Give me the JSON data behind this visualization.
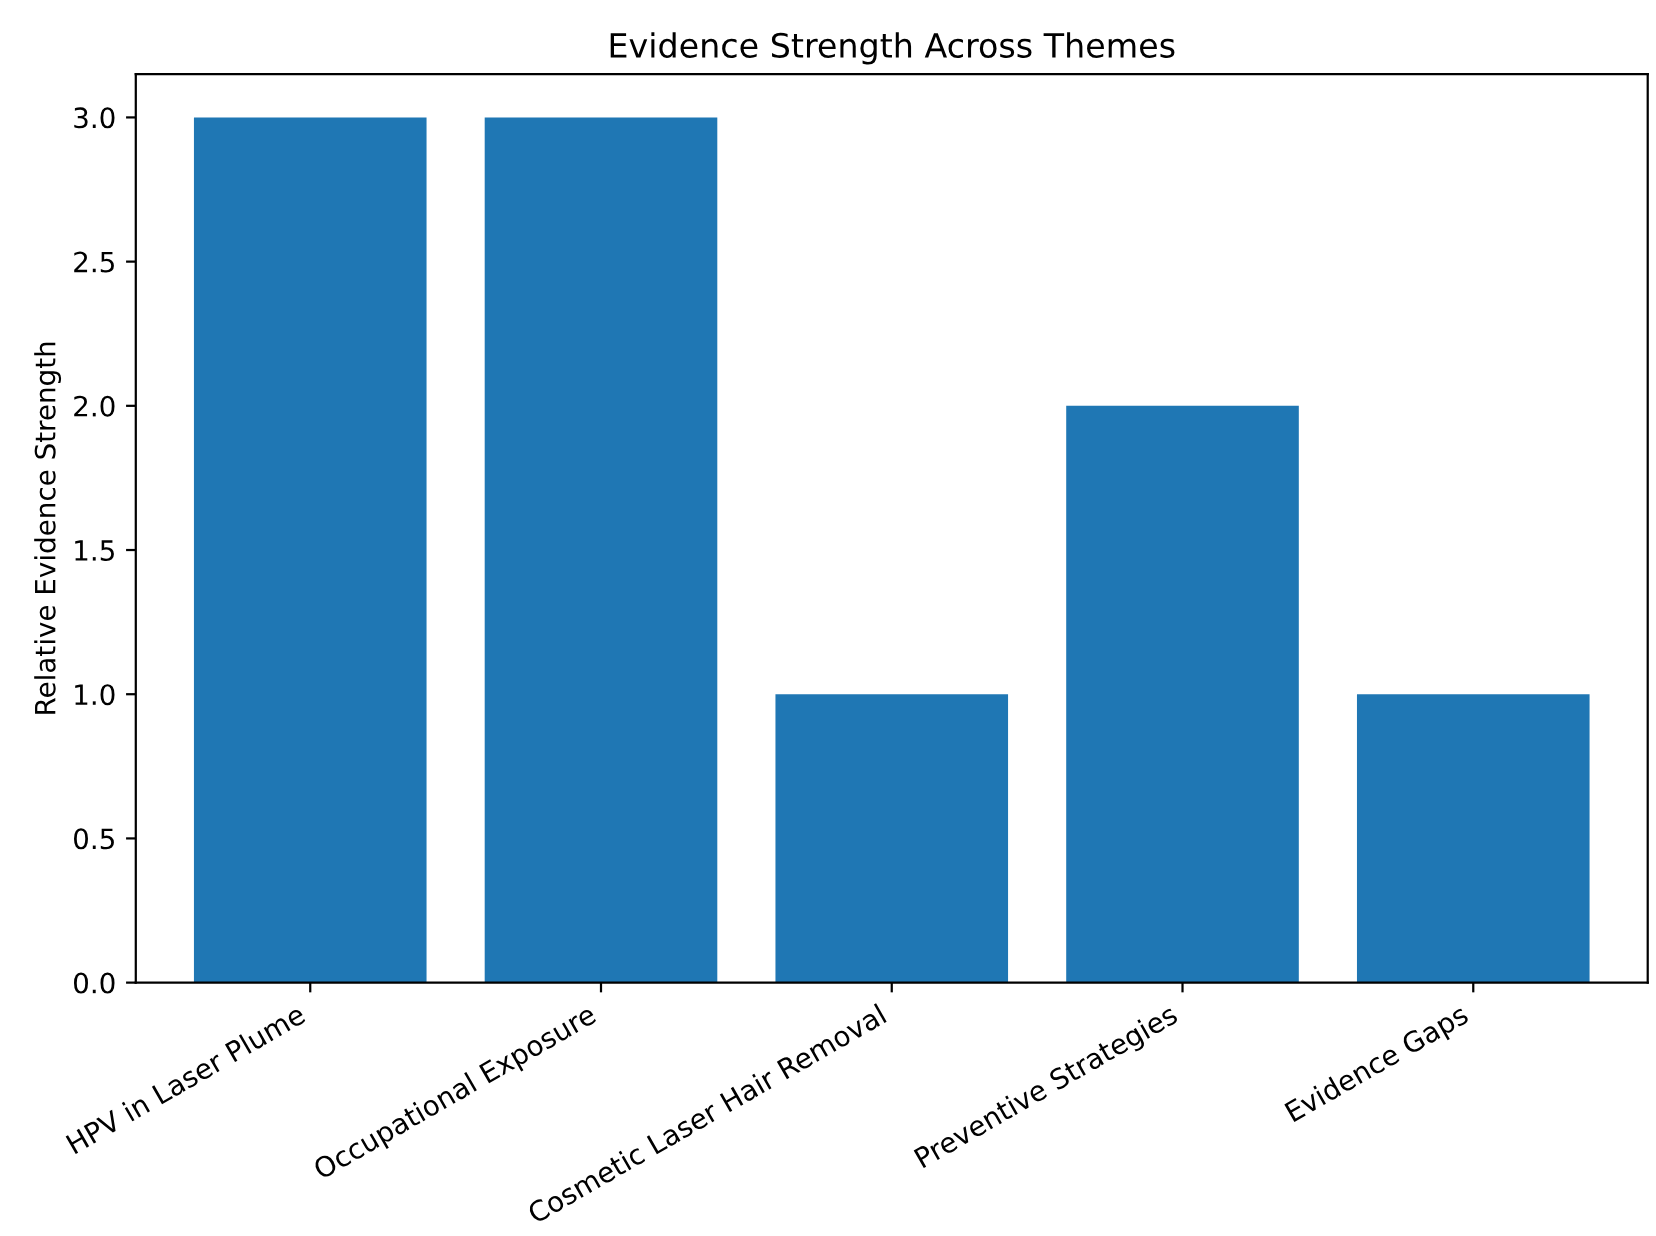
{
  "chart_data": {
    "type": "bar",
    "title": "Evidence Strength Across Themes",
    "ylabel": "Relative Evidence Strength",
    "categories": [
      "HPV in Laser Plume",
      "Occupational Exposure",
      "Cosmetic Laser Hair Removal",
      "Preventive Strategies",
      "Evidence Gaps"
    ],
    "values": [
      3,
      3,
      1,
      2,
      1
    ],
    "color": "#1f77b4",
    "ylim": [
      0,
      3.15
    ],
    "yticks": [
      {
        "value": 0,
        "label": "0.0"
      },
      {
        "value": 0.5,
        "label": "0.5"
      },
      {
        "value": 1,
        "label": "1.0"
      },
      {
        "value": 1.5,
        "label": "1.5"
      },
      {
        "value": 2,
        "label": "2.0"
      },
      {
        "value": 2.5,
        "label": "2.5"
      },
      {
        "value": 3,
        "label": "3.0"
      }
    ],
    "grid": false
  }
}
